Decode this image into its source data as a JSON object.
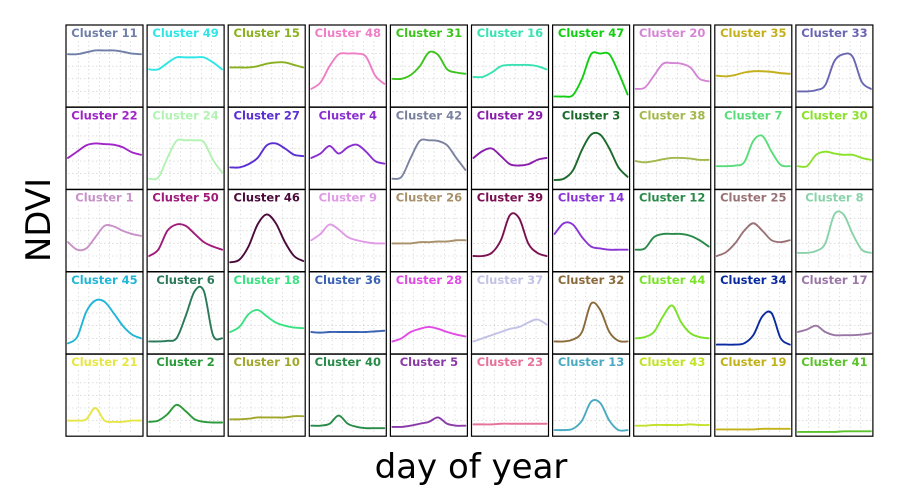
{
  "chart_data": {
    "type": "line",
    "xlabel": "day of year",
    "ylabel": "NDVI",
    "grid": true,
    "layout": "5x10 small multiples",
    "panels": [
      {
        "name": "Cluster 11",
        "color": "#6f7fa8",
        "shape": [
          0.79,
          0.79,
          0.82,
          0.85,
          0.85,
          0.85,
          0.83,
          0.8,
          0.79
        ]
      },
      {
        "name": "Cluster 49",
        "color": "#2fe6e6",
        "shape": [
          0.55,
          0.55,
          0.65,
          0.74,
          0.74,
          0.74,
          0.74,
          0.66,
          0.55
        ]
      },
      {
        "name": "Cluster 15",
        "color": "#8ab020",
        "shape": [
          0.58,
          0.58,
          0.58,
          0.6,
          0.64,
          0.66,
          0.66,
          0.62,
          0.58
        ]
      },
      {
        "name": "Cluster 48",
        "color": "#ee7fc5",
        "shape": [
          0.24,
          0.34,
          0.6,
          0.79,
          0.8,
          0.8,
          0.75,
          0.45,
          0.32
        ]
      },
      {
        "name": "Cluster 31",
        "color": "#3cc41c",
        "shape": [
          0.4,
          0.4,
          0.46,
          0.6,
          0.82,
          0.78,
          0.55,
          0.5,
          0.48
        ]
      },
      {
        "name": "Cluster 16",
        "color": "#38e2b2",
        "shape": [
          0.43,
          0.43,
          0.5,
          0.6,
          0.62,
          0.62,
          0.62,
          0.6,
          0.55
        ]
      },
      {
        "name": "Cluster 47",
        "color": "#12ce12",
        "shape": [
          0.12,
          0.12,
          0.14,
          0.4,
          0.79,
          0.8,
          0.79,
          0.5,
          0.15
        ]
      },
      {
        "name": "Cluster 20",
        "color": "#d486d4",
        "shape": [
          0.24,
          0.26,
          0.45,
          0.64,
          0.65,
          0.64,
          0.58,
          0.4,
          0.36
        ]
      },
      {
        "name": "Cluster 35",
        "color": "#c4b01c",
        "shape": [
          0.45,
          0.44,
          0.46,
          0.5,
          0.52,
          0.52,
          0.51,
          0.49,
          0.48
        ]
      },
      {
        "name": "Cluster 33",
        "color": "#6a66b2",
        "shape": [
          0.2,
          0.2,
          0.22,
          0.3,
          0.68,
          0.79,
          0.75,
          0.35,
          0.24
        ]
      },
      {
        "name": "Cluster 22",
        "color": "#a024c8",
        "shape": [
          0.45,
          0.55,
          0.65,
          0.68,
          0.67,
          0.66,
          0.62,
          0.54,
          0.5
        ]
      },
      {
        "name": "Cluster 24",
        "color": "#b2f2b2",
        "shape": [
          0.12,
          0.14,
          0.45,
          0.72,
          0.73,
          0.73,
          0.7,
          0.42,
          0.22
        ]
      },
      {
        "name": "Cluster 27",
        "color": "#5a2ed2",
        "shape": [
          0.3,
          0.3,
          0.35,
          0.45,
          0.65,
          0.68,
          0.6,
          0.5,
          0.48
        ]
      },
      {
        "name": "Cluster 4",
        "color": "#8a2ed2",
        "shape": [
          0.45,
          0.52,
          0.64,
          0.52,
          0.62,
          0.66,
          0.55,
          0.4,
          0.36
        ]
      },
      {
        "name": "Cluster 42",
        "color": "#7a82a0",
        "shape": [
          0.12,
          0.15,
          0.45,
          0.72,
          0.73,
          0.72,
          0.65,
          0.45,
          0.26
        ]
      },
      {
        "name": "Cluster 29",
        "color": "#8a1eaa",
        "shape": [
          0.45,
          0.56,
          0.6,
          0.48,
          0.35,
          0.33,
          0.35,
          0.42,
          0.45
        ]
      },
      {
        "name": "Cluster 3",
        "color": "#1a6a2a",
        "shape": [
          0.1,
          0.12,
          0.25,
          0.58,
          0.82,
          0.82,
          0.6,
          0.3,
          0.15
        ]
      },
      {
        "name": "Cluster 38",
        "color": "#a2b84a",
        "shape": [
          0.4,
          0.38,
          0.4,
          0.43,
          0.45,
          0.45,
          0.44,
          0.42,
          0.42
        ]
      },
      {
        "name": "Cluster 7",
        "color": "#5adc7a",
        "shape": [
          0.32,
          0.32,
          0.33,
          0.38,
          0.72,
          0.8,
          0.55,
          0.34,
          0.32
        ]
      },
      {
        "name": "Cluster 30",
        "color": "#8ae22a",
        "shape": [
          0.32,
          0.32,
          0.5,
          0.55,
          0.52,
          0.5,
          0.5,
          0.45,
          0.42
        ]
      },
      {
        "name": "Cluster 1",
        "color": "#c892c8",
        "shape": [
          0.42,
          0.3,
          0.32,
          0.5,
          0.68,
          0.67,
          0.6,
          0.55,
          0.52
        ]
      },
      {
        "name": "Cluster 50",
        "color": "#a01a7a",
        "shape": [
          0.2,
          0.3,
          0.6,
          0.7,
          0.68,
          0.55,
          0.42,
          0.35,
          0.3
        ]
      },
      {
        "name": "Cluster 46",
        "color": "#4a0a3a",
        "shape": [
          0.1,
          0.14,
          0.35,
          0.7,
          0.86,
          0.72,
          0.42,
          0.2,
          0.12
        ]
      },
      {
        "name": "Cluster 9",
        "color": "#e09ae6",
        "shape": [
          0.45,
          0.55,
          0.7,
          0.62,
          0.5,
          0.45,
          0.42,
          0.4,
          0.4
        ]
      },
      {
        "name": "Cluster 26",
        "color": "#a8906a",
        "shape": [
          0.4,
          0.4,
          0.4,
          0.42,
          0.42,
          0.43,
          0.43,
          0.45,
          0.45
        ]
      },
      {
        "name": "Cluster 39",
        "color": "#7a1050",
        "shape": [
          0.2,
          0.2,
          0.25,
          0.45,
          0.85,
          0.8,
          0.4,
          0.25,
          0.2
        ]
      },
      {
        "name": "Cluster 14",
        "color": "#8a34d6",
        "shape": [
          0.55,
          0.72,
          0.7,
          0.5,
          0.35,
          0.32,
          0.3,
          0.3,
          0.3
        ]
      },
      {
        "name": "Cluster 12",
        "color": "#2a8a4a",
        "shape": [
          0.3,
          0.32,
          0.5,
          0.55,
          0.55,
          0.55,
          0.52,
          0.45,
          0.35
        ]
      },
      {
        "name": "Cluster 25",
        "color": "#9a7276",
        "shape": [
          0.2,
          0.26,
          0.4,
          0.6,
          0.72,
          0.6,
          0.45,
          0.42,
          0.45
        ]
      },
      {
        "name": "Cluster 8",
        "color": "#8ad2aa",
        "shape": [
          0.25,
          0.25,
          0.28,
          0.4,
          0.86,
          0.86,
          0.55,
          0.3,
          0.25
        ]
      },
      {
        "name": "Cluster 45",
        "color": "#22b6d6",
        "shape": [
          0.12,
          0.22,
          0.62,
          0.8,
          0.78,
          0.6,
          0.4,
          0.26,
          0.2
        ]
      },
      {
        "name": "Cluster 6",
        "color": "#2a7a5a",
        "shape": [
          0.15,
          0.15,
          0.16,
          0.2,
          0.55,
          0.95,
          0.95,
          0.25,
          0.2
        ]
      },
      {
        "name": "Cluster 18",
        "color": "#3ae282",
        "shape": [
          0.3,
          0.38,
          0.58,
          0.65,
          0.55,
          0.45,
          0.4,
          0.37,
          0.36
        ]
      },
      {
        "name": "Cluster 36",
        "color": "#3a62b2",
        "shape": [
          0.3,
          0.29,
          0.3,
          0.3,
          0.3,
          0.3,
          0.3,
          0.31,
          0.32
        ]
      },
      {
        "name": "Cluster 28",
        "color": "#e24ae6",
        "shape": [
          0.15,
          0.2,
          0.3,
          0.35,
          0.38,
          0.35,
          0.3,
          0.26,
          0.23
        ]
      },
      {
        "name": "Cluster 37",
        "color": "#c2c2e6",
        "shape": [
          0.15,
          0.2,
          0.25,
          0.3,
          0.35,
          0.38,
          0.45,
          0.5,
          0.42
        ]
      },
      {
        "name": "Cluster 32",
        "color": "#8a6a3a",
        "shape": [
          0.15,
          0.15,
          0.18,
          0.3,
          0.75,
          0.65,
          0.3,
          0.16,
          0.15
        ]
      },
      {
        "name": "Cluster 44",
        "color": "#7ae22a",
        "shape": [
          0.2,
          0.22,
          0.3,
          0.55,
          0.72,
          0.45,
          0.28,
          0.22,
          0.2
        ]
      },
      {
        "name": "Cluster 34",
        "color": "#0a2aa0",
        "shape": [
          0.1,
          0.1,
          0.1,
          0.12,
          0.25,
          0.55,
          0.6,
          0.2,
          0.1
        ]
      },
      {
        "name": "Cluster 17",
        "color": "#9a76a6",
        "shape": [
          0.3,
          0.34,
          0.4,
          0.3,
          0.25,
          0.25,
          0.25,
          0.26,
          0.28
        ]
      },
      {
        "name": "Cluster 21",
        "color": "#e6e646",
        "shape": [
          0.2,
          0.2,
          0.22,
          0.4,
          0.2,
          0.18,
          0.18,
          0.2,
          0.2
        ]
      },
      {
        "name": "Cluster 2",
        "color": "#2a9a3a",
        "shape": [
          0.18,
          0.2,
          0.3,
          0.45,
          0.35,
          0.22,
          0.18,
          0.17,
          0.17
        ]
      },
      {
        "name": "Cluster 10",
        "color": "#a2a62a",
        "shape": [
          0.22,
          0.22,
          0.23,
          0.25,
          0.25,
          0.25,
          0.25,
          0.27,
          0.27
        ]
      },
      {
        "name": "Cluster 40",
        "color": "#2a8a4a",
        "shape": [
          0.12,
          0.12,
          0.15,
          0.28,
          0.15,
          0.1,
          0.08,
          0.08,
          0.08
        ]
      },
      {
        "name": "Cluster 5",
        "color": "#8a3aa6",
        "shape": [
          0.1,
          0.1,
          0.12,
          0.15,
          0.18,
          0.25,
          0.15,
          0.12,
          0.12
        ]
      },
      {
        "name": "Cluster 23",
        "color": "#e6729a",
        "shape": [
          0.14,
          0.14,
          0.14,
          0.15,
          0.15,
          0.15,
          0.15,
          0.15,
          0.15
        ]
      },
      {
        "name": "Cluster 13",
        "color": "#4aaac2",
        "shape": [
          0.05,
          0.05,
          0.07,
          0.2,
          0.5,
          0.48,
          0.2,
          0.05,
          0.05
        ]
      },
      {
        "name": "Cluster 43",
        "color": "#c2e22a",
        "shape": [
          0.12,
          0.12,
          0.13,
          0.13,
          0.13,
          0.13,
          0.14,
          0.13,
          0.13
        ]
      },
      {
        "name": "Cluster 19",
        "color": "#c2b21a",
        "shape": [
          0.06,
          0.06,
          0.06,
          0.06,
          0.06,
          0.07,
          0.07,
          0.07,
          0.07
        ]
      },
      {
        "name": "Cluster 41",
        "color": "#5ac22a",
        "shape": [
          0.02,
          0.02,
          0.02,
          0.02,
          0.02,
          0.03,
          0.03,
          0.03,
          0.03
        ]
      }
    ]
  }
}
